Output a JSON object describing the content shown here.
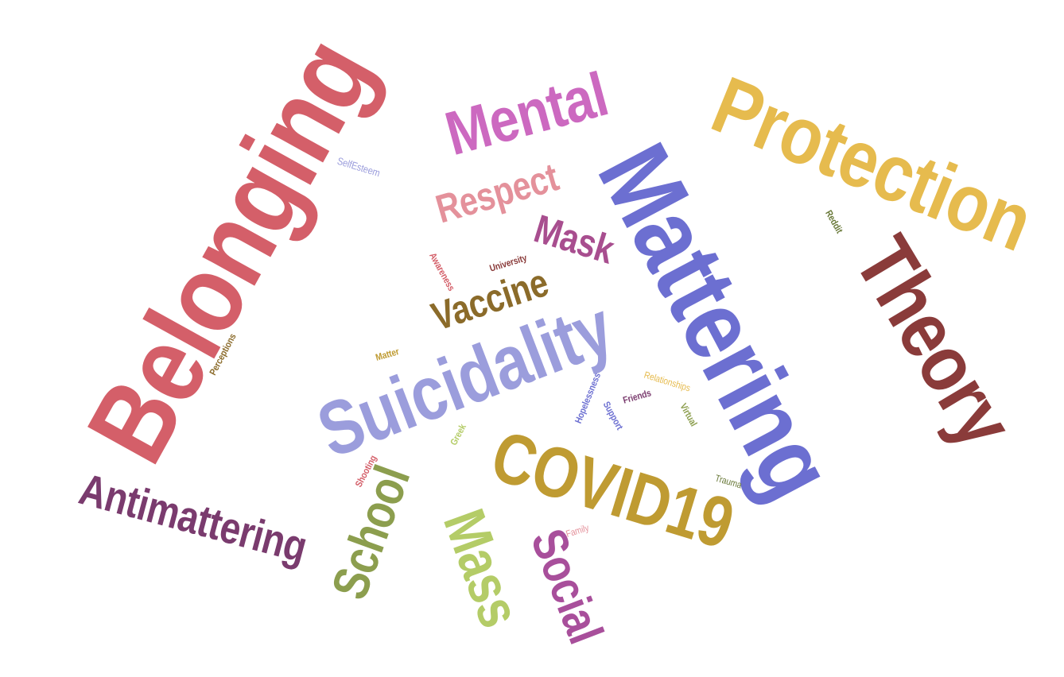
{
  "words": [
    {
      "text": "Belonging",
      "color": "#d45f69",
      "key": "belonging"
    },
    {
      "text": "Mattering",
      "color": "#6c6fd1",
      "key": "mattering"
    },
    {
      "text": "Protection",
      "color": "#e6bb4e",
      "key": "protection"
    },
    {
      "text": "Theory",
      "color": "#8a3b3a",
      "key": "theory"
    },
    {
      "text": "Suicidality",
      "color": "#9b9ddc",
      "key": "suicidality"
    },
    {
      "text": "COVID19",
      "color": "#bf9b32",
      "key": "covid19"
    },
    {
      "text": "Mental",
      "color": "#cc69c0",
      "key": "mental"
    },
    {
      "text": "Antimattering",
      "color": "#7a3b6e",
      "key": "antimattering"
    },
    {
      "text": "School",
      "color": "#8c9e4e",
      "key": "school"
    },
    {
      "text": "Mass",
      "color": "#b4cc67",
      "key": "mass"
    },
    {
      "text": "Social",
      "color": "#a84f9b",
      "key": "social"
    },
    {
      "text": "Vaccine",
      "color": "#8b6b2a",
      "key": "vaccine"
    },
    {
      "text": "Respect",
      "color": "#e4919b",
      "key": "respect"
    },
    {
      "text": "Mask",
      "color": "#a84e8f",
      "key": "mask"
    },
    {
      "text": "SelfEsteem",
      "color": "#9b9ddc",
      "key": "selfesteem"
    },
    {
      "text": "Reddit",
      "color": "#6a7a3a",
      "key": "reddit"
    },
    {
      "text": "Awareness",
      "color": "#d45f69",
      "key": "awareness"
    },
    {
      "text": "University",
      "color": "#8a3b3a",
      "key": "university"
    },
    {
      "text": "Perceptions",
      "color": "#8b6b2a",
      "key": "perceptions"
    },
    {
      "text": "Matter",
      "color": "#bf9b32",
      "key": "matter"
    },
    {
      "text": "Hopelessness",
      "color": "#6c6fd1",
      "key": "hopelessness"
    },
    {
      "text": "Relationships",
      "color": "#e6bb4e",
      "key": "relationships"
    },
    {
      "text": "Support",
      "color": "#6c6fd1",
      "key": "support"
    },
    {
      "text": "Friends",
      "color": "#7a3b6e",
      "key": "friends"
    },
    {
      "text": "Virtual",
      "color": "#8c9e4e",
      "key": "virtual"
    },
    {
      "text": "Greek",
      "color": "#b4cc67",
      "key": "greek"
    },
    {
      "text": "Shooting",
      "color": "#d45f69",
      "key": "shooting"
    },
    {
      "text": "Trauma",
      "color": "#6a7a3a",
      "key": "trauma"
    },
    {
      "text": "Family",
      "color": "#e4919b",
      "key": "family"
    }
  ]
}
